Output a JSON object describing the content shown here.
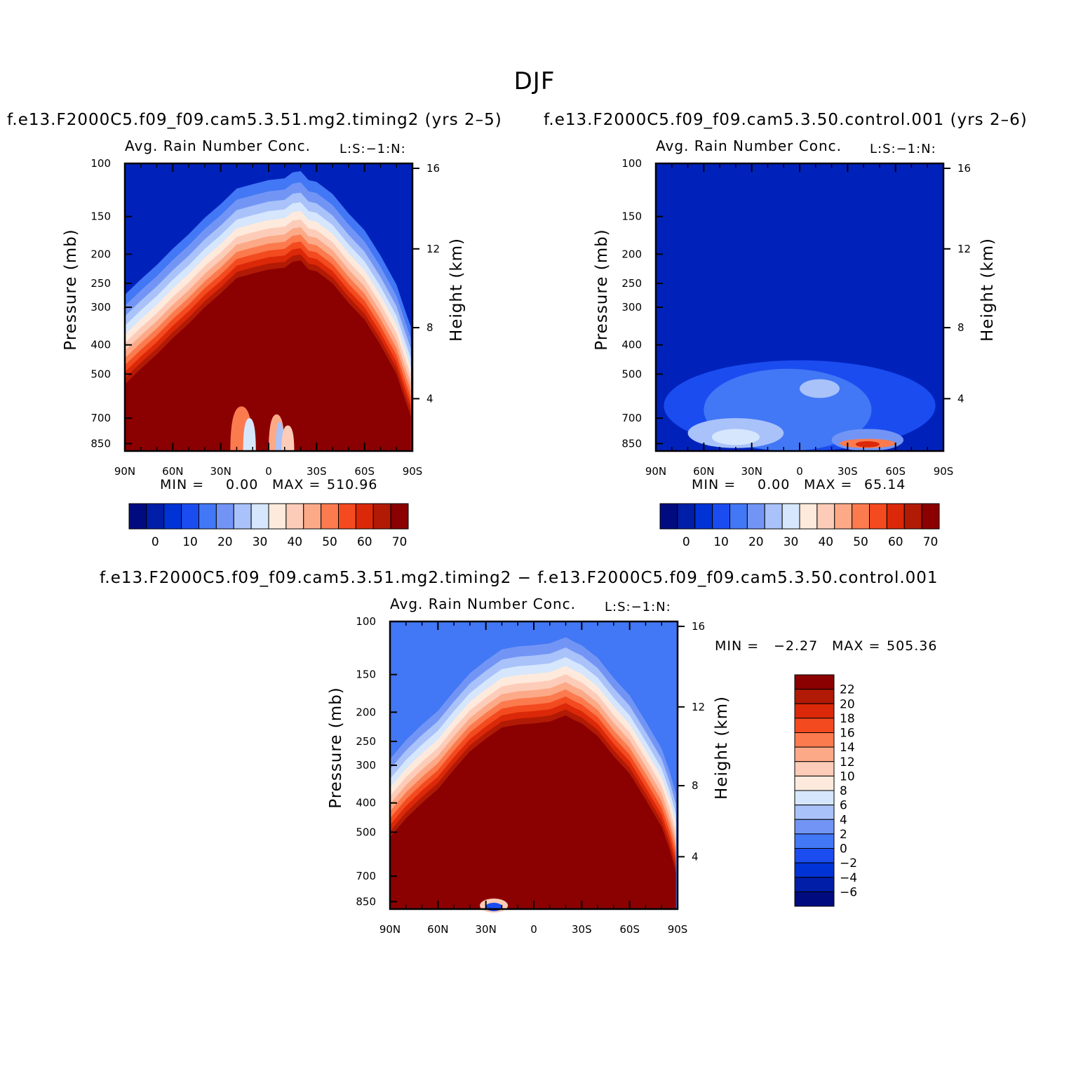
{
  "figure": {
    "title": "DJF"
  },
  "panels": [
    {
      "case_title": "f.e13.F2000C5.f09_f09.cam5.3.51.mg2.timing2 (yrs 2–5)",
      "title": "Avg. Rain Number Conc.",
      "corner_label": "L:S:−1:N:",
      "min_label": "MIN =",
      "min_value": "0.00",
      "max_label": "MAX =",
      "max_value": "510.96"
    },
    {
      "case_title": "f.e13.F2000C5.f09_f09.cam5.3.50.control.001 (yrs 2–6)",
      "title": "Avg. Rain Number Conc.",
      "corner_label": "L:S:−1:N:",
      "min_label": "MIN =",
      "min_value": "0.00",
      "max_label": "MAX =",
      "max_value": "65.14"
    },
    {
      "case_title": "f.e13.F2000C5.f09_f09.cam5.3.51.mg2.timing2 − f.e13.F2000C5.f09_f09.cam5.3.50.control.001",
      "title": "Avg. Rain Number Conc.",
      "corner_label": "L:S:−1:N:",
      "min_label": "MIN =",
      "min_value": "−2.27",
      "max_label": "MAX =",
      "max_value": "505.36"
    }
  ],
  "chart_data": [
    {
      "type": "heatmap",
      "panel": "model",
      "title": "Avg. Rain Number Conc.",
      "xlabel": "",
      "ylabel": "Pressure (mb)",
      "y2label": "Height (km)",
      "x_ticks": [
        "90N",
        "60N",
        "30N",
        "0",
        "30S",
        "60S",
        "90S"
      ],
      "y_ticks": [
        "100",
        "150",
        "200",
        "250",
        "300",
        "400",
        "500",
        "700",
        "850"
      ],
      "y2_ticks": [
        "16",
        "12",
        "8",
        "4"
      ],
      "xlim": [
        90,
        -90
      ],
      "ylim": [
        100,
        900
      ],
      "colorbar_labels": [
        "0",
        "10",
        "20",
        "30",
        "40",
        "50",
        "60",
        "70"
      ],
      "colors": [
        "#000b80",
        "#001ea8",
        "#0033d6",
        "#1a4cf0",
        "#4277f5",
        "#7295f5",
        "#a9c2fa",
        "#d6e6fc",
        "#feeadc",
        "#fdccb8",
        "#fca987",
        "#fb7a4e",
        "#f34a1f",
        "#db2808",
        "#b11a05",
        "#8b0000"
      ],
      "background_color": "#0022bb",
      "boundary_pressure": [
        [
          90,
          540
        ],
        [
          80,
          480
        ],
        [
          70,
          430
        ],
        [
          60,
          380
        ],
        [
          50,
          340
        ],
        [
          40,
          300
        ],
        [
          30,
          270
        ],
        [
          20,
          240
        ],
        [
          10,
          232
        ],
        [
          0,
          225
        ],
        [
          -10,
          222
        ],
        [
          -15,
          212
        ],
        [
          -20,
          210
        ],
        [
          -25,
          225
        ],
        [
          -30,
          228
        ],
        [
          -40,
          250
        ],
        [
          -50,
          290
        ],
        [
          -60,
          330
        ],
        [
          -70,
          400
        ],
        [
          -80,
          500
        ],
        [
          -85,
          600
        ],
        [
          -89,
          690
        ]
      ],
      "min": 0.0,
      "max": 510.96
    },
    {
      "type": "heatmap",
      "panel": "control",
      "title": "Avg. Rain Number Conc.",
      "ylabel": "Pressure (mb)",
      "y2label": "Height (km)",
      "x_ticks": [
        "90N",
        "60N",
        "30N",
        "0",
        "30S",
        "60S",
        "90S"
      ],
      "y_ticks": [
        "100",
        "150",
        "200",
        "250",
        "300",
        "400",
        "500",
        "700",
        "850"
      ],
      "y2_ticks": [
        "16",
        "12",
        "8",
        "4"
      ],
      "xlim": [
        90,
        -90
      ],
      "ylim": [
        100,
        900
      ],
      "colorbar_labels": [
        "0",
        "10",
        "20",
        "30",
        "40",
        "50",
        "60",
        "70"
      ],
      "background_color": "#0022bb",
      "features": [
        {
          "kind": "lower-level blue band",
          "lat_range": [
            85,
            -85
          ],
          "pressure_range": [
            450,
            900
          ],
          "value": 15
        },
        {
          "kind": "light blue patch",
          "lat_range": [
            70,
            10
          ],
          "pressure_range": [
            700,
            880
          ],
          "value": 28
        },
        {
          "kind": "red maximum",
          "lat_range": [
            -25,
            -60
          ],
          "pressure_range": [
            820,
            880
          ],
          "value": 60
        }
      ],
      "min": 0.0,
      "max": 65.14
    },
    {
      "type": "heatmap",
      "panel": "difference",
      "title": "Avg. Rain Number Conc.",
      "ylabel": "Pressure (mb)",
      "y2label": "Height (km)",
      "x_ticks": [
        "90N",
        "60N",
        "30N",
        "0",
        "30S",
        "60S",
        "90S"
      ],
      "y_ticks": [
        "100",
        "150",
        "200",
        "250",
        "300",
        "400",
        "500",
        "700",
        "850"
      ],
      "y2_ticks": [
        "16",
        "12",
        "8",
        "4"
      ],
      "xlim": [
        90,
        -90
      ],
      "ylim": [
        100,
        900
      ],
      "colorbar_labels": [
        "22",
        "20",
        "18",
        "16",
        "14",
        "12",
        "10",
        "8",
        "6",
        "4",
        "2",
        "0",
        "−2",
        "−4",
        "−6"
      ],
      "colors": [
        "#8b0000",
        "#b11a05",
        "#db2808",
        "#f34a1f",
        "#fb7a4e",
        "#fca987",
        "#fdccb8",
        "#feeadc",
        "#d6e6fc",
        "#a9c2fa",
        "#7295f5",
        "#4277f5",
        "#1a4cf0",
        "#0033d6",
        "#001ea8",
        "#000b80"
      ],
      "background_color": "#4277f5",
      "boundary_pressure": [
        [
          90,
          520
        ],
        [
          80,
          450
        ],
        [
          70,
          400
        ],
        [
          60,
          360
        ],
        [
          50,
          310
        ],
        [
          40,
          270
        ],
        [
          30,
          245
        ],
        [
          20,
          225
        ],
        [
          10,
          220
        ],
        [
          0,
          218
        ],
        [
          -10,
          215
        ],
        [
          -20,
          205
        ],
        [
          -25,
          212
        ],
        [
          -30,
          218
        ],
        [
          -40,
          240
        ],
        [
          -50,
          280
        ],
        [
          -60,
          320
        ],
        [
          -70,
          390
        ],
        [
          -80,
          480
        ],
        [
          -85,
          570
        ],
        [
          -89,
          680
        ]
      ],
      "min": -2.27,
      "max": 505.36
    }
  ]
}
